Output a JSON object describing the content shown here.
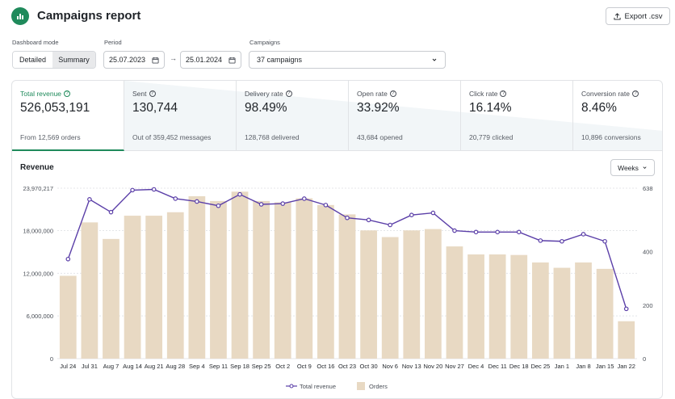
{
  "header": {
    "title": "Campaigns report",
    "export_label": "Export .csv"
  },
  "filters": {
    "mode_label": "Dashboard mode",
    "mode_options": [
      "Detailed",
      "Summary"
    ],
    "period_label": "Period",
    "date_from": "25.07.2023",
    "date_to": "25.01.2024",
    "campaigns_label": "Campaigns",
    "campaigns_value": "37 campaigns"
  },
  "metrics": [
    {
      "label": "Total revenue",
      "value": "526,053,191",
      "sub": "From 12,569 orders"
    },
    {
      "label": "Sent",
      "value": "130,744",
      "sub": "Out of 359,452 messages"
    },
    {
      "label": "Delivery rate",
      "value": "98.49%",
      "sub": "128,768 delivered"
    },
    {
      "label": "Open rate",
      "value": "33.92%",
      "sub": "43,684 opened"
    },
    {
      "label": "Click rate",
      "value": "16.14%",
      "sub": "20,779 clicked"
    },
    {
      "label": "Conversion rate",
      "value": "8.46%",
      "sub": "10,896 conversions"
    }
  ],
  "chart_section": {
    "title": "Revenue",
    "granularity": "Weeks"
  },
  "colors": {
    "bar": "#e8d9c3",
    "line": "#5b3fa8",
    "accent": "#1f8a5b"
  },
  "chart_data": {
    "type": "bar",
    "title": "Revenue",
    "categories": [
      "Jul 24",
      "Jul 31",
      "Aug 7",
      "Aug 14",
      "Aug 21",
      "Aug 28",
      "Sep 4",
      "Sep 11",
      "Sep 18",
      "Sep 25",
      "Oct 2",
      "Oct 9",
      "Oct 16",
      "Oct 23",
      "Oct 30",
      "Nov 6",
      "Nov 13",
      "Nov 20",
      "Nov 27",
      "Dec 4",
      "Dec 11",
      "Dec 18",
      "Dec 25",
      "Jan 1",
      "Jan 8",
      "Jan 15",
      "Jan 22"
    ],
    "series": [
      {
        "name": "Orders",
        "axis": "right",
        "values": [
          310,
          510,
          448,
          535,
          535,
          548,
          608,
          590,
          625,
          590,
          585,
          600,
          575,
          540,
          480,
          455,
          480,
          485,
          420,
          390,
          390,
          388,
          360,
          340,
          360,
          336,
          140
        ]
      },
      {
        "name": "Total revenue",
        "axis": "left",
        "values": [
          14000000,
          22400000,
          20600000,
          23700000,
          23800000,
          22500000,
          22100000,
          21500000,
          23100000,
          21700000,
          21800000,
          22500000,
          21600000,
          19800000,
          19500000,
          18800000,
          20200000,
          20500000,
          18000000,
          17800000,
          17800000,
          17800000,
          16600000,
          16500000,
          17500000,
          16500000,
          7000000
        ]
      }
    ],
    "y_left": {
      "ticks": [
        "0",
        "6,000,000",
        "12,000,000",
        "18,000,000",
        "23,970,217"
      ],
      "max": 23970217
    },
    "y_right": {
      "ticks": [
        "0",
        "200",
        "400",
        "638"
      ],
      "max": 638
    },
    "legend": [
      "Total revenue",
      "Orders"
    ]
  }
}
